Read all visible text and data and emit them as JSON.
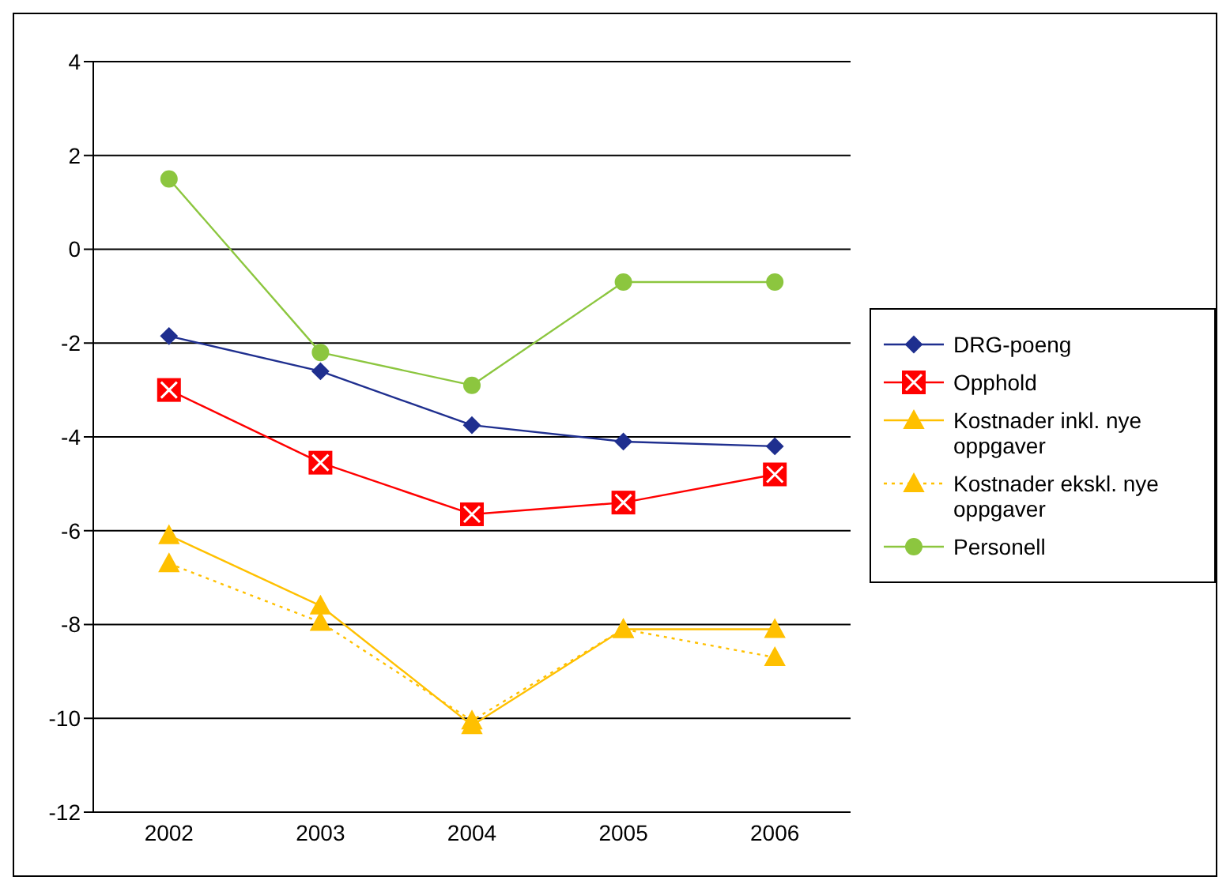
{
  "chart_data": {
    "type": "line",
    "categories": [
      "2002",
      "2003",
      "2004",
      "2005",
      "2006"
    ],
    "ylim": [
      -12,
      4
    ],
    "yticks": [
      -12,
      -10,
      -8,
      -6,
      -4,
      -2,
      0,
      2,
      4
    ],
    "grid": "y",
    "legend": "right",
    "series": [
      {
        "name": "DRG-poeng",
        "color": "#1f2f8f",
        "marker": "diamond",
        "line_style": "solid",
        "values": [
          -1.85,
          -2.6,
          -3.75,
          -4.1,
          -4.2
        ]
      },
      {
        "name": "Opphold",
        "color": "#ff0000",
        "marker": "square",
        "line_style": "solid",
        "values": [
          -3.0,
          -4.55,
          -5.65,
          -5.4,
          -4.8
        ]
      },
      {
        "name": "Kostnader inkl. nye oppgaver",
        "color": "#ffc000",
        "marker": "triangle",
        "line_style": "solid",
        "values": [
          -6.1,
          -7.6,
          -10.15,
          -8.1,
          -8.1
        ]
      },
      {
        "name": "Kostnader ekskl. nye oppgaver",
        "color": "#ffc000",
        "marker": "triangle",
        "line_style": "dotted",
        "values": [
          -6.7,
          -7.95,
          -10.05,
          -8.1,
          -8.7
        ]
      },
      {
        "name": "Personell",
        "color": "#8cc63f",
        "marker": "circle",
        "line_style": "solid",
        "values": [
          1.5,
          -2.2,
          -2.9,
          -0.7,
          -0.7
        ]
      }
    ]
  }
}
